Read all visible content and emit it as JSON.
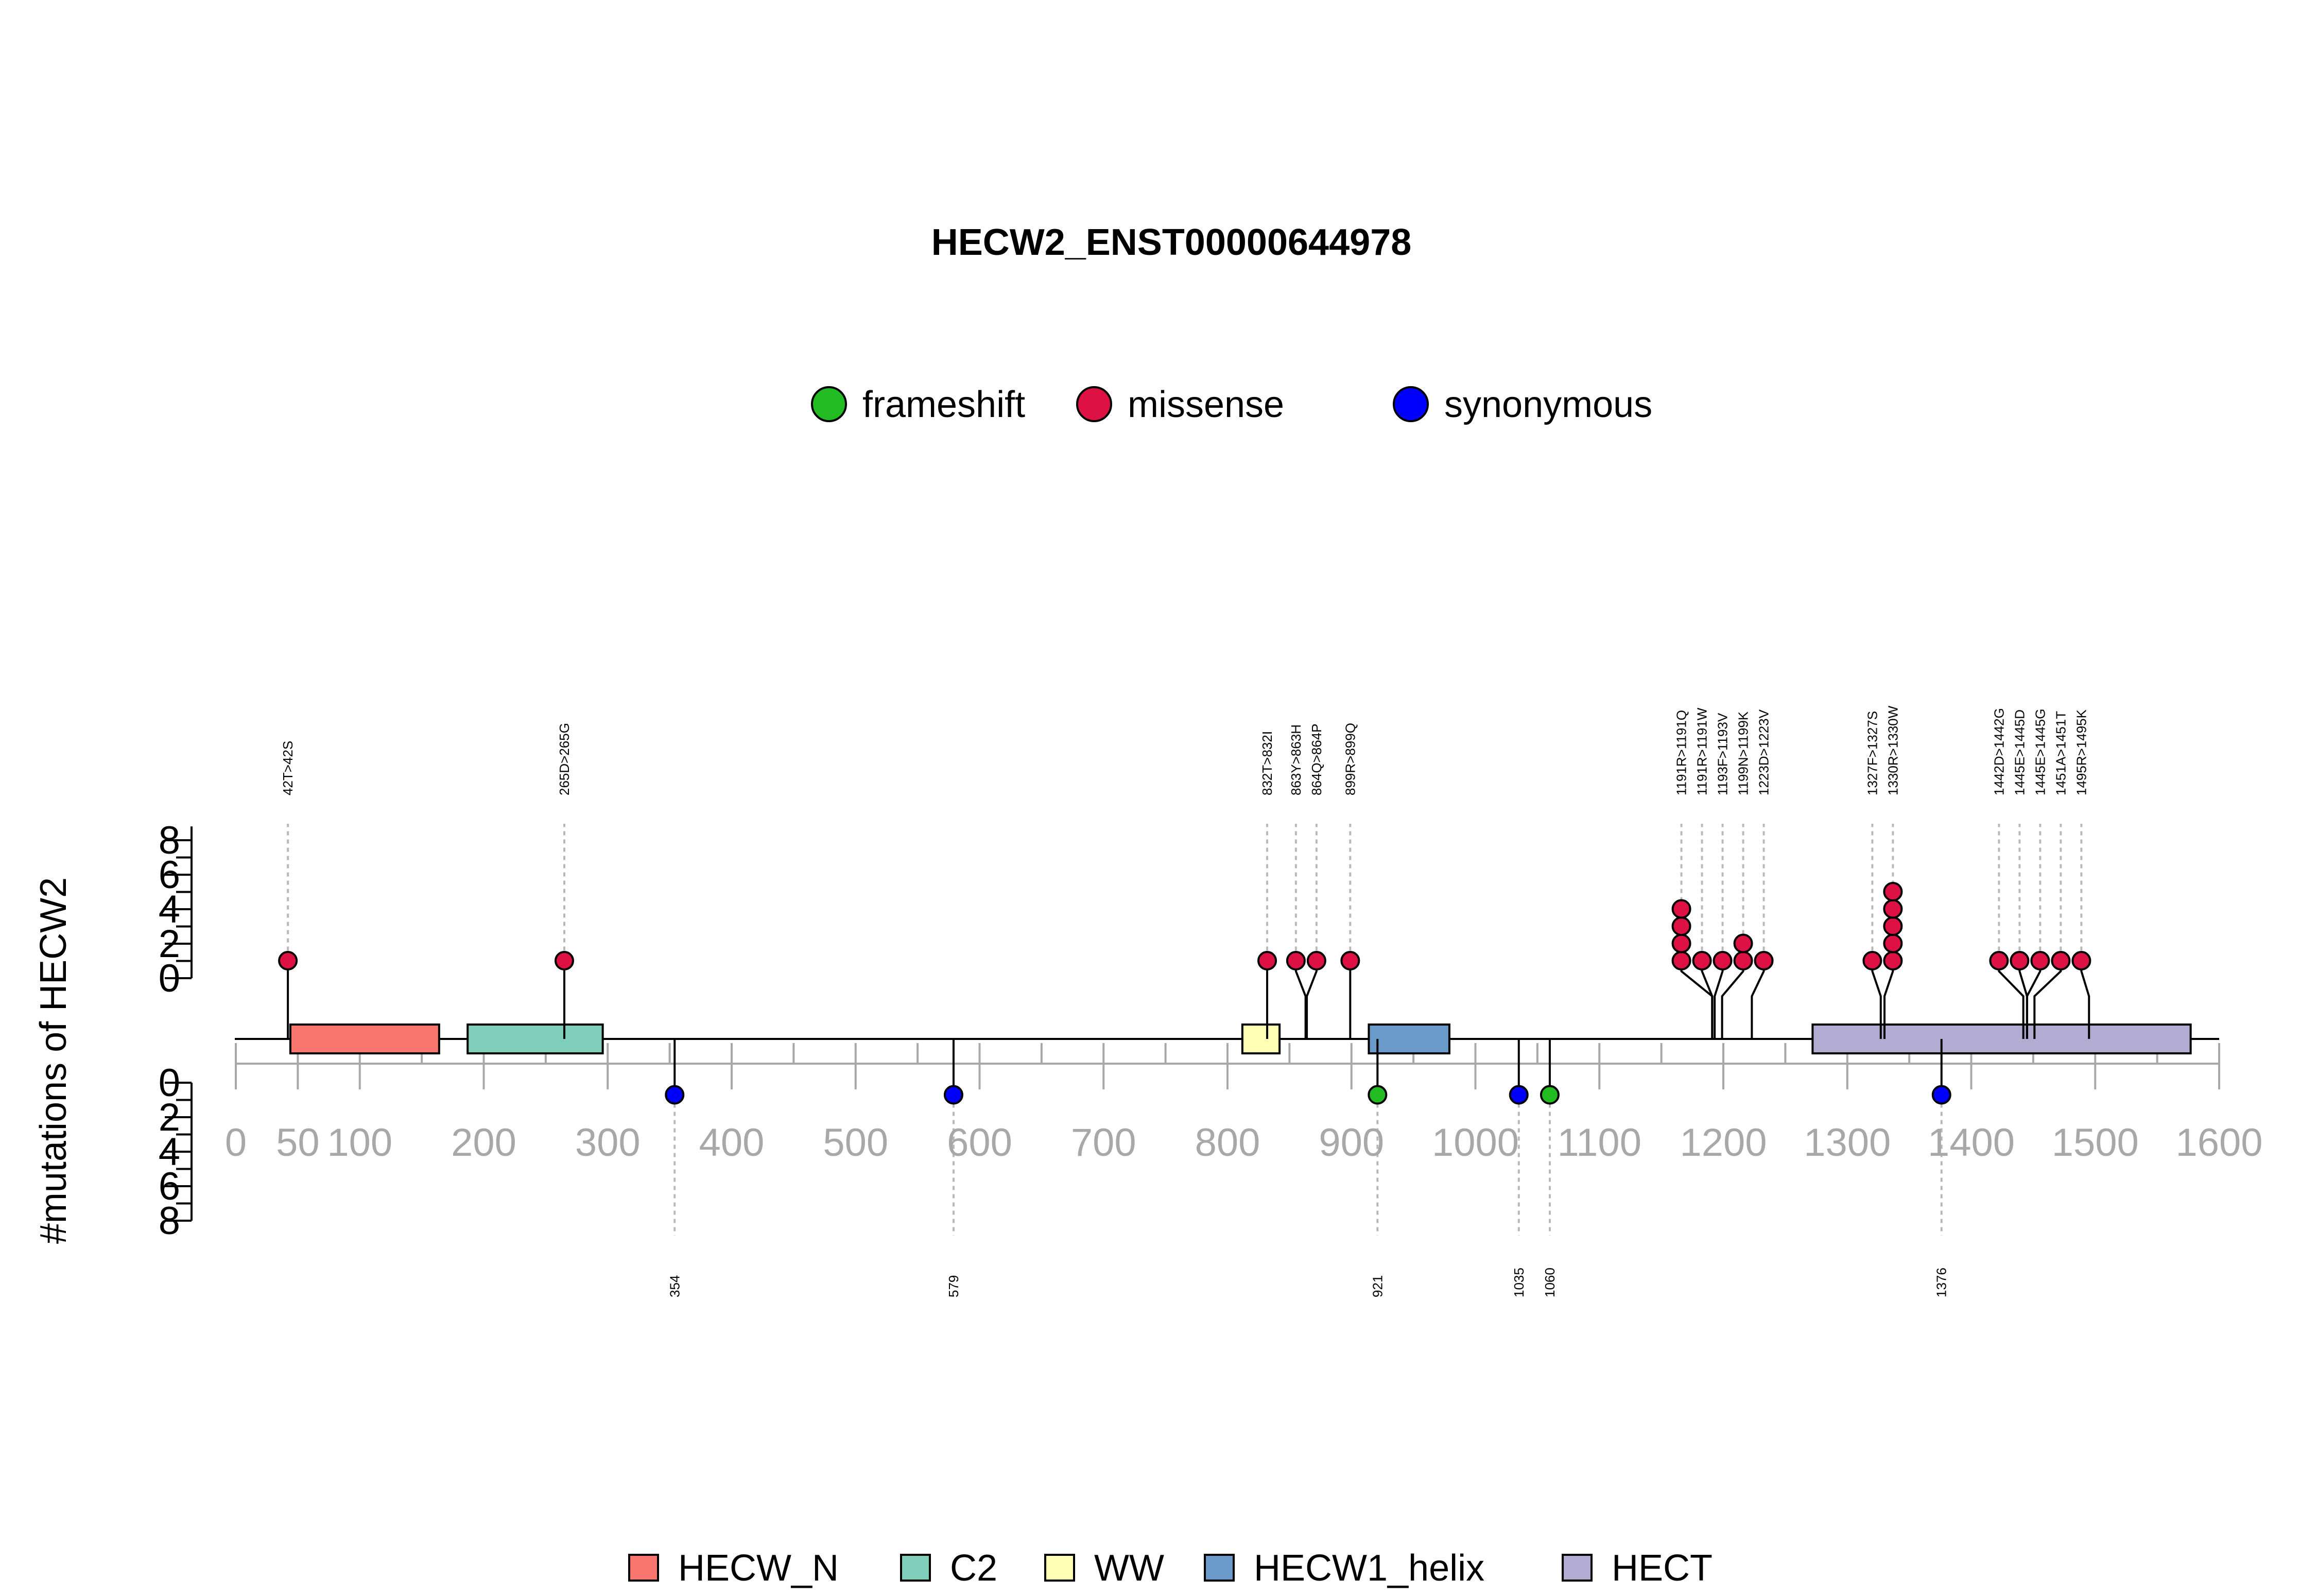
{
  "chart_data": {
    "type": "lollipop",
    "title": "HECW2_ENST00000644978",
    "ylabel": "#mutations of HECW2",
    "xlim": [
      0,
      1600
    ],
    "x_ticks": [
      0,
      50,
      100,
      200,
      300,
      400,
      500,
      600,
      700,
      800,
      900,
      1000,
      1100,
      1200,
      1300,
      1400,
      1500,
      1600
    ],
    "x_minor_step": 50,
    "y_ticks_upper": [
      0,
      2,
      4,
      6,
      8
    ],
    "y_ticks_lower": [
      0,
      2,
      4,
      6,
      8
    ],
    "mutation_types": [
      {
        "name": "frameshift",
        "color": "#22bb22"
      },
      {
        "name": "missense",
        "color": "#dd1144"
      },
      {
        "name": "synonymous",
        "color": "#0000ff"
      }
    ],
    "domains": [
      {
        "name": "HECW_N",
        "start": 44,
        "end": 164,
        "color": "#f8766d"
      },
      {
        "name": "C2",
        "start": 187,
        "end": 296,
        "color": "#7fcdbb"
      },
      {
        "name": "WW",
        "start": 812,
        "end": 842,
        "color": "#ffffb3"
      },
      {
        "name": "HECW1_helix",
        "start": 914,
        "end": 979,
        "color": "#6a9ac9"
      },
      {
        "name": "HECT",
        "start": 1272,
        "end": 1577,
        "color": "#b2abd2"
      }
    ],
    "upper_mutations": [
      {
        "label": "42T>42S",
        "position": 42,
        "count": 1,
        "type": "missense"
      },
      {
        "label": "265D>265G",
        "position": 265,
        "count": 1,
        "type": "missense"
      },
      {
        "label": "832T>832I",
        "position": 832,
        "count": 1,
        "type": "missense"
      },
      {
        "label": "863Y>863H",
        "position": 863,
        "count": 1,
        "type": "missense"
      },
      {
        "label": "864Q>864P",
        "position": 864,
        "count": 1,
        "type": "missense"
      },
      {
        "label": "899R>899Q",
        "position": 899,
        "count": 1,
        "type": "missense"
      },
      {
        "label": "1191R>1191Q",
        "position": 1191,
        "count": 4,
        "type": "missense"
      },
      {
        "label": "1191R>1191W",
        "position": 1191,
        "count": 1,
        "type": "missense"
      },
      {
        "label": "1193F>1193V",
        "position": 1193,
        "count": 1,
        "type": "missense"
      },
      {
        "label": "1199N>1199K",
        "position": 1199,
        "count": 2,
        "type": "missense"
      },
      {
        "label": "1223D>1223V",
        "position": 1223,
        "count": 1,
        "type": "missense"
      },
      {
        "label": "1327F>1327S",
        "position": 1327,
        "count": 1,
        "type": "missense"
      },
      {
        "label": "1330R>1330W",
        "position": 1330,
        "count": 5,
        "type": "missense"
      },
      {
        "label": "1442D>1442G",
        "position": 1442,
        "count": 1,
        "type": "missense"
      },
      {
        "label": "1445E>1445D",
        "position": 1445,
        "count": 1,
        "type": "missense"
      },
      {
        "label": "1445E>1445G",
        "position": 1445,
        "count": 1,
        "type": "missense"
      },
      {
        "label": "1451A>1451T",
        "position": 1451,
        "count": 1,
        "type": "missense"
      },
      {
        "label": "1495R>1495K",
        "position": 1495,
        "count": 1,
        "type": "missense"
      }
    ],
    "lower_mutations": [
      {
        "label": "354",
        "position": 354,
        "count": 1,
        "type": "synonymous"
      },
      {
        "label": "579",
        "position": 579,
        "count": 1,
        "type": "synonymous"
      },
      {
        "label": "921",
        "position": 921,
        "count": 1,
        "type": "frameshift"
      },
      {
        "label": "1035",
        "position": 1035,
        "count": 1,
        "type": "synonymous"
      },
      {
        "label": "1060",
        "position": 1060,
        "count": 1,
        "type": "frameshift"
      },
      {
        "label": "1376",
        "position": 1376,
        "count": 1,
        "type": "synonymous"
      }
    ]
  }
}
